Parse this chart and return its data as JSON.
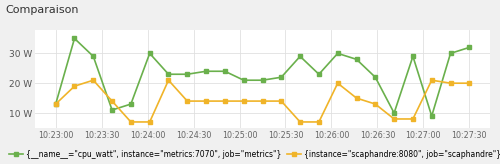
{
  "title": "Comparaison",
  "background_color": "#f0f0f0",
  "plot_bg_color": "#ffffff",
  "grid_color": "#e0e0e0",
  "ylim": [
    5,
    38
  ],
  "yticks": [
    10,
    20,
    30
  ],
  "ytick_labels": [
    "10 W",
    "20 W",
    "30 W"
  ],
  "x_labels": [
    "10:23:00",
    "10:23:30",
    "10:24:00",
    "10:24:30",
    "10:25:00",
    "10:25:30",
    "10:26:00",
    "10:26:30",
    "10:27:00",
    "10:27:30"
  ],
  "series_green": {
    "color": "#6ab04c",
    "marker": "s",
    "markersize": 3.0,
    "linewidth": 1.2,
    "label": "{__name__=\"cpu_watt\", instance=\"metrics:7070\", job=\"metrics\"}",
    "y": [
      13,
      35,
      29,
      11,
      13,
      30,
      23,
      23,
      24,
      24,
      21,
      21,
      22,
      29,
      23,
      30,
      28,
      22,
      10,
      29,
      9,
      30,
      32
    ]
  },
  "series_gold": {
    "color": "#f0b429",
    "marker": "s",
    "markersize": 3.0,
    "linewidth": 1.2,
    "label": "{instance=\"scaphandre:8080\", job=\"scaphandre\"}",
    "y": [
      13,
      19,
      21,
      14,
      7,
      7,
      21,
      14,
      14,
      14,
      14,
      14,
      14,
      7,
      7,
      20,
      15,
      13,
      8,
      8,
      21,
      20,
      20
    ]
  },
  "n_points": 23
}
